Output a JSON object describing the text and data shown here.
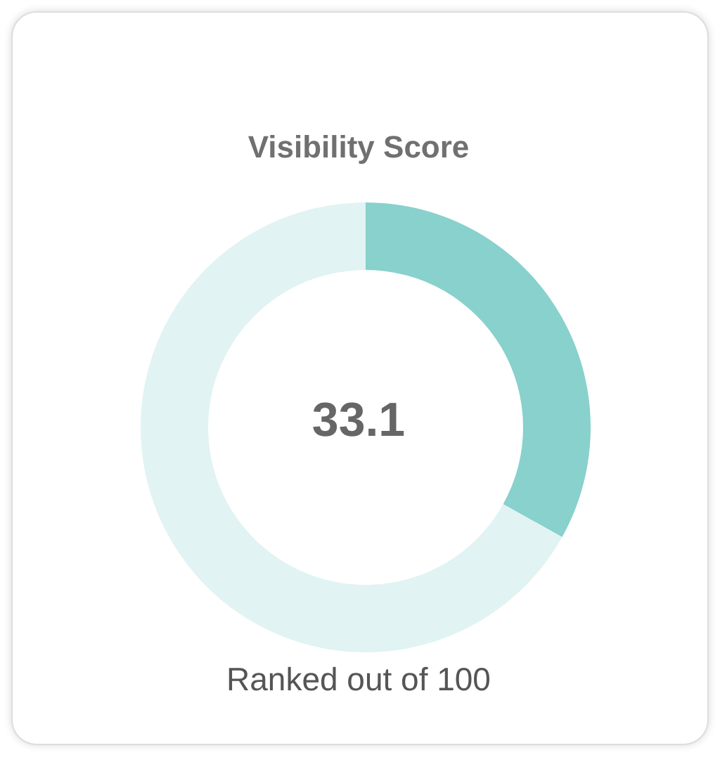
{
  "chart_data": {
    "type": "donut",
    "title": "Visibility Score",
    "categories": [
      null,
      null
    ],
    "values": [
      33.1,
      66.9
    ],
    "colors": [
      "#88d1cc",
      "#e1f3f3"
    ],
    "annotations": [
      "33.1",
      "Ranked out of 100"
    ],
    "legend": false
  }
}
